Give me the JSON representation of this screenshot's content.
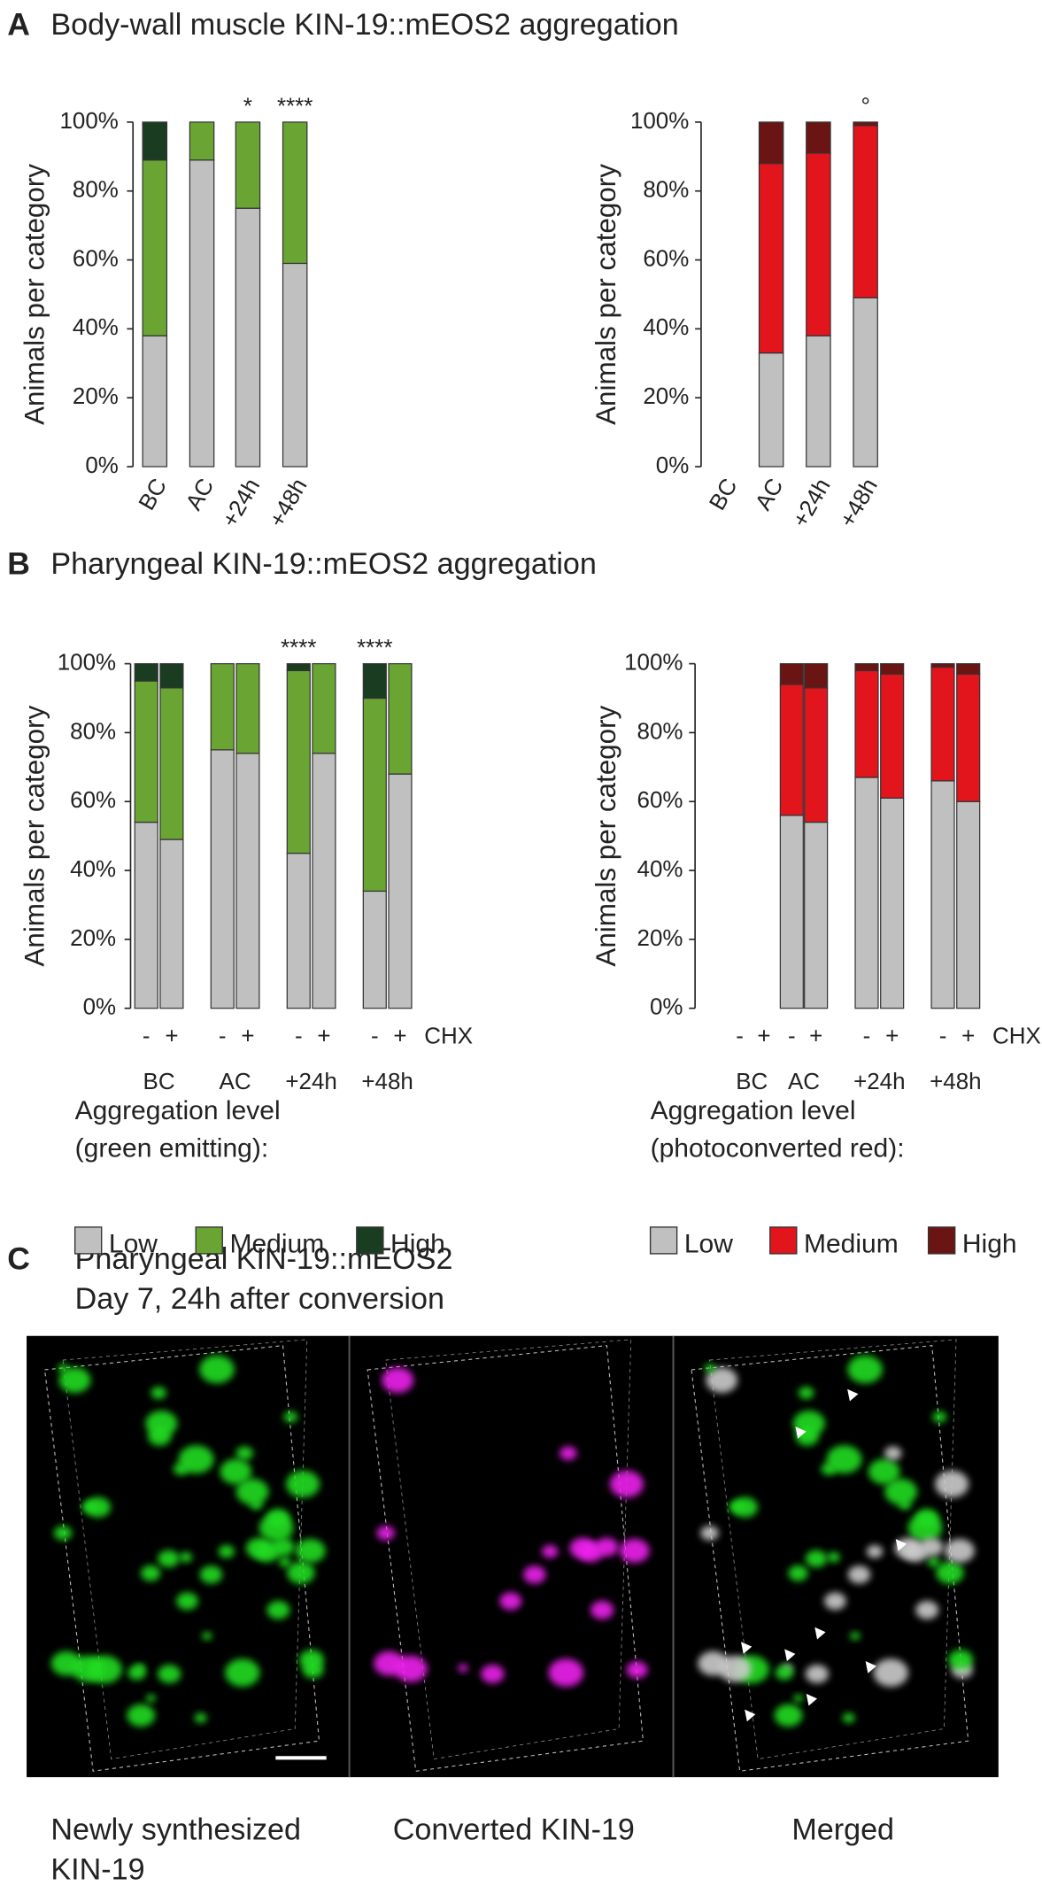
{
  "panel_a": {
    "letter": "A",
    "title": "Body-wall muscle KIN-19::mEOS2 aggregation"
  },
  "panel_b": {
    "letter": "B",
    "title": "Pharyngeal KIN-19::mEOS2 aggregation"
  },
  "panel_c": {
    "letter": "C",
    "title_lines": [
      "Pharyngeal KIN-19::mEOS2",
      "Day 7, 24h after conversion"
    ],
    "captions": [
      [
        "Newly synthesized",
        "KIN-19"
      ],
      [
        "Converted KIN-19"
      ],
      [
        "Merged"
      ]
    ]
  },
  "chart_data": [
    {
      "type": "bar",
      "stacked": true,
      "ylabel": "Animals per category",
      "ylim": [
        0,
        100
      ],
      "yticks": [
        {
          "value": 0,
          "label": "0%"
        },
        {
          "value": 20,
          "label": "20%"
        },
        {
          "value": 40,
          "label": "40%"
        },
        {
          "value": 60,
          "label": "60%"
        },
        {
          "value": 80,
          "label": "80%"
        },
        {
          "value": 100,
          "label": "100%"
        }
      ],
      "categories": [
        "BC",
        "AC",
        "+24h",
        "+48h"
      ],
      "annotations": [
        null,
        null,
        "*",
        "****"
      ],
      "series": [
        {
          "name": "Low",
          "color": "#c0c0c0",
          "values": [
            38,
            89,
            75,
            59
          ]
        },
        {
          "name": "Medium",
          "color": "#6aa534",
          "values": [
            51,
            11,
            25,
            41
          ]
        },
        {
          "name": "High",
          "color": "#1a3d22",
          "values": [
            11,
            0,
            0,
            0
          ]
        }
      ]
    },
    {
      "type": "bar",
      "stacked": true,
      "ylabel": "Animals per category",
      "ylim": [
        0,
        100
      ],
      "yticks": [
        {
          "value": 0,
          "label": "0%"
        },
        {
          "value": 20,
          "label": "20%"
        },
        {
          "value": 40,
          "label": "40%"
        },
        {
          "value": 60,
          "label": "60%"
        },
        {
          "value": 80,
          "label": "80%"
        },
        {
          "value": 100,
          "label": "100%"
        }
      ],
      "categories": [
        "BC",
        "AC",
        "+24h",
        "+48h"
      ],
      "annotations": [
        null,
        null,
        null,
        "°"
      ],
      "series": [
        {
          "name": "Low",
          "color": "#c0c0c0",
          "values": [
            null,
            33,
            38,
            49
          ]
        },
        {
          "name": "Medium",
          "color": "#e2141c",
          "values": [
            null,
            55,
            53,
            50
          ]
        },
        {
          "name": "High",
          "color": "#6b1414",
          "values": [
            null,
            12,
            9,
            1
          ]
        }
      ]
    },
    {
      "type": "bar",
      "stacked": true,
      "ylabel": "Animals per category",
      "ylim": [
        0,
        100
      ],
      "yticks": [
        {
          "value": 0,
          "label": "0%"
        },
        {
          "value": 20,
          "label": "20%"
        },
        {
          "value": 40,
          "label": "40%"
        },
        {
          "value": 60,
          "label": "60%"
        },
        {
          "value": 80,
          "label": "80%"
        },
        {
          "value": 100,
          "label": "100%"
        }
      ],
      "categories": [
        "-",
        "+",
        "-",
        "+",
        "-",
        "+",
        "-",
        "+"
      ],
      "category_axis_label": "CHX",
      "groups": [
        "BC",
        "AC",
        "+24h",
        "+48h"
      ],
      "annotations": [
        null,
        null,
        null,
        null,
        "****",
        null,
        "****",
        null
      ],
      "legend_title": [
        "Aggregation level",
        "(green emitting):"
      ],
      "series": [
        {
          "name": "Low",
          "color": "#c0c0c0",
          "values": [
            54,
            49,
            75,
            74,
            45,
            74,
            34,
            68
          ]
        },
        {
          "name": "Medium",
          "color": "#6aa534",
          "values": [
            41,
            44,
            25,
            26,
            53,
            26,
            56,
            32
          ]
        },
        {
          "name": "High",
          "color": "#1a3d22",
          "values": [
            5,
            7,
            0,
            0,
            2,
            0,
            10,
            0
          ]
        }
      ]
    },
    {
      "type": "bar",
      "stacked": true,
      "ylabel": "Animals per category",
      "ylim": [
        0,
        100
      ],
      "yticks": [
        {
          "value": 0,
          "label": "0%"
        },
        {
          "value": 20,
          "label": "20%"
        },
        {
          "value": 40,
          "label": "40%"
        },
        {
          "value": 60,
          "label": "60%"
        },
        {
          "value": 80,
          "label": "80%"
        },
        {
          "value": 100,
          "label": "100%"
        }
      ],
      "categories": [
        "-",
        "+",
        "-",
        "+",
        "-",
        "+",
        "-",
        "+"
      ],
      "category_axis_label": "CHX",
      "groups": [
        "BC",
        "AC",
        "+24h",
        "+48h"
      ],
      "legend_title": [
        "Aggregation level",
        "(photoconverted red):"
      ],
      "series": [
        {
          "name": "Low",
          "color": "#c0c0c0",
          "values": [
            null,
            null,
            56,
            54,
            67,
            61,
            66,
            60
          ]
        },
        {
          "name": "Medium",
          "color": "#e2141c",
          "values": [
            null,
            null,
            38,
            39,
            31,
            36,
            33,
            37
          ]
        },
        {
          "name": "High",
          "color": "#6b1414",
          "values": [
            null,
            null,
            6,
            7,
            2,
            3,
            1,
            3
          ]
        }
      ]
    }
  ]
}
